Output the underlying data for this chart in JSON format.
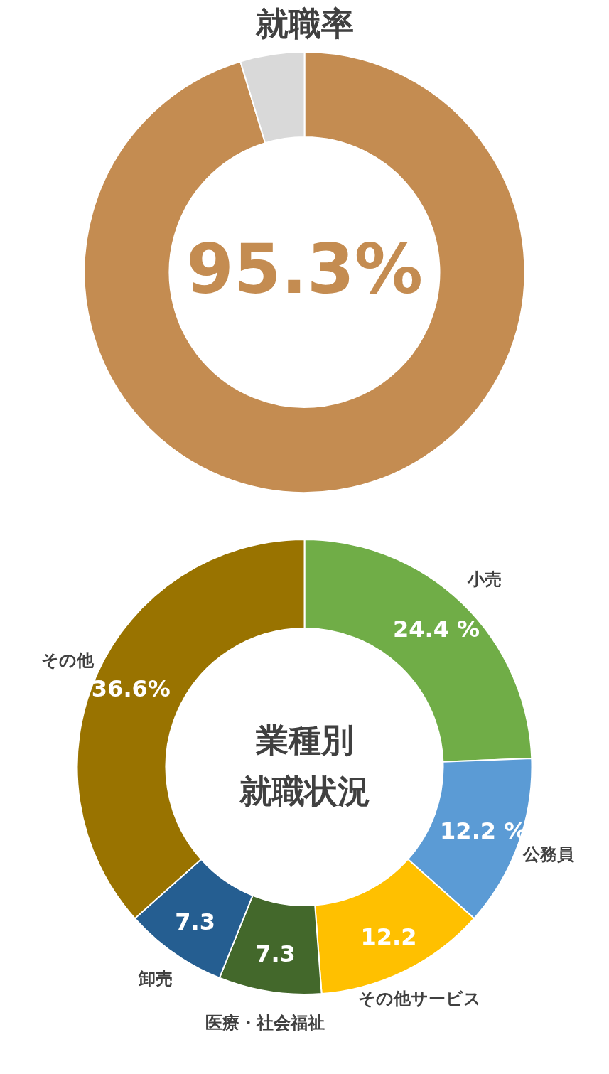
{
  "chart_data": [
    {
      "type": "donut",
      "title": "就職率",
      "categories": [
        null,
        null
      ],
      "values": [
        95.3,
        4.7
      ],
      "colors": [
        "#c48c51",
        "#d9d9d9"
      ],
      "value_labels": [
        "95.3%",
        null
      ]
    },
    {
      "type": "donut",
      "title": "業種別就職状況",
      "categories": [
        "小売",
        "公務員",
        "その他サービス",
        "医療・社会福祉",
        "卸売",
        "その他"
      ],
      "values": [
        24.4,
        12.2,
        12.2,
        7.3,
        7.3,
        36.6
      ],
      "colors": [
        "#70ad47",
        "#5b9bd5",
        "#ffc000",
        "#43682b",
        "#255e91",
        "#997300"
      ],
      "value_labels": [
        "24.4 %",
        "12.2 %",
        "12.2",
        "7.3",
        "7.3",
        "36.6%"
      ]
    }
  ]
}
